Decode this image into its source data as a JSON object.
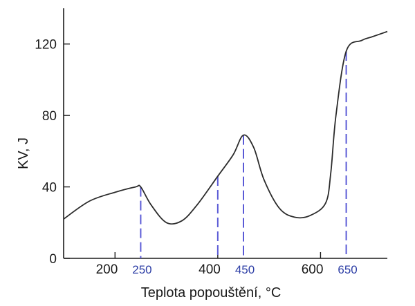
{
  "chart_data": {
    "type": "line",
    "xlabel": "Teplota popouštění, °C",
    "ylabel": "KV, J",
    "xlim": [
      100,
      730
    ],
    "ylim": [
      0,
      140
    ],
    "x_ticks": [
      200,
      400,
      600
    ],
    "x_tick_labels": [
      "200",
      "400",
      "600"
    ],
    "y_ticks": [
      0,
      40,
      80,
      120
    ],
    "y_tick_labels": [
      "0",
      "40",
      "80",
      "120"
    ],
    "grid": false,
    "series": [
      {
        "x": [
          100,
          150,
          200,
          240,
          250,
          270,
          300,
          330,
          360,
          400,
          430,
          450,
          470,
          490,
          520,
          550,
          580,
          610,
          620,
          630,
          650,
          680,
          700,
          730
        ],
        "y": [
          22,
          32,
          37,
          40,
          40,
          30,
          20,
          21,
          30,
          46,
          58,
          69,
          62,
          44,
          28,
          23,
          24,
          31,
          48,
          80,
          116,
          122,
          124,
          127
        ]
      }
    ],
    "color": "#2b2b2b",
    "markers": {
      "x": [
        250,
        400,
        450,
        650
      ],
      "labels": [
        "250",
        "450",
        "650"
      ],
      "label_x": [
        250,
        450,
        650
      ],
      "color": "#5a5ad6",
      "label_color": "#2e3fa6"
    }
  }
}
